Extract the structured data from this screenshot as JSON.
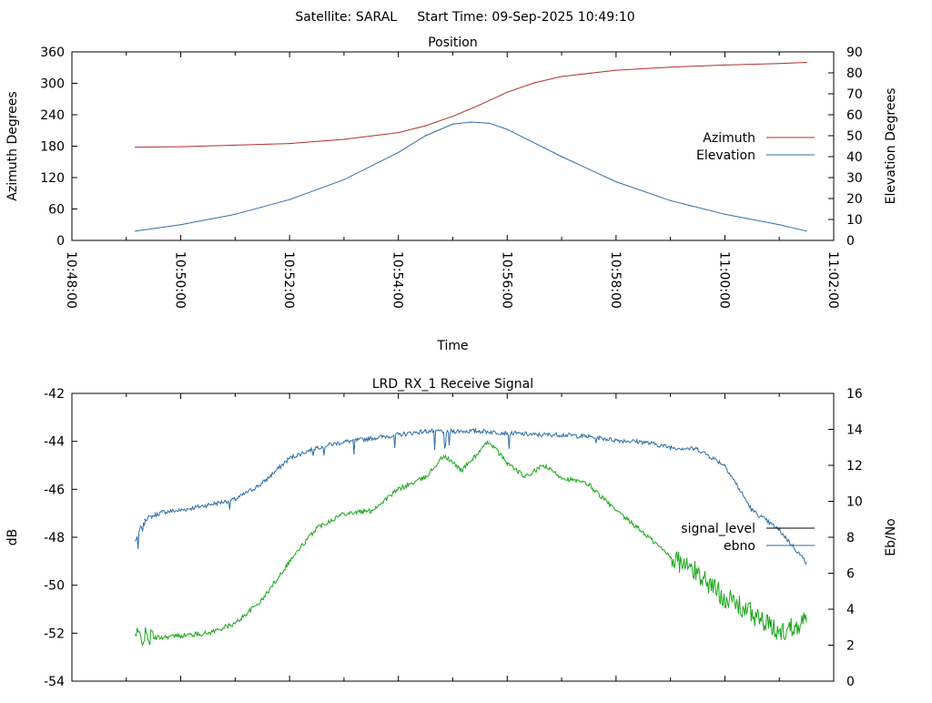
{
  "header": {
    "title": "Satellite: SARAL     Start Time: 09-Sep-2025 10:49:10"
  },
  "colors": {
    "azimuth": "#b03030",
    "elevation": "#2f6ea8",
    "signal_level": "#000000",
    "ebno": "#2f6ea8",
    "signal_trace": "#1aa81a",
    "ebno_trace": "#2f6ea8",
    "axis": "#000000",
    "background": "#ffffff"
  },
  "chart_data": [
    {
      "type": "line",
      "title": "Position",
      "xlabel": "Time",
      "ylabel": "Azimuth Degrees",
      "y2label": "Elevation Degrees",
      "xlim": [
        "10:48:00",
        "11:02:00"
      ],
      "x_ticks": [
        "10:48:00",
        "10:50:00",
        "10:52:00",
        "10:54:00",
        "10:56:00",
        "10:58:00",
        "11:00:00",
        "11:02:00"
      ],
      "ylim": [
        0,
        360
      ],
      "y_ticks": [
        "0",
        "60",
        "120",
        "180",
        "240",
        "300",
        "360"
      ],
      "y2lim": [
        0,
        90
      ],
      "y2_ticks": [
        "0",
        "10",
        "20",
        "30",
        "40",
        "50",
        "60",
        "70",
        "80",
        "90"
      ],
      "grid": false,
      "legend_position": "right",
      "series": [
        {
          "name": "Azimuth",
          "axis": "left",
          "points": [
            [
              "10:49:10",
              178
            ],
            [
              "10:50:00",
              179
            ],
            [
              "10:51:00",
              182
            ],
            [
              "10:52:00",
              185
            ],
            [
              "10:53:00",
              193
            ],
            [
              "10:54:00",
              206
            ],
            [
              "10:54:30",
              219
            ],
            [
              "10:55:00",
              237
            ],
            [
              "10:55:30",
              259
            ],
            [
              "10:56:00",
              283
            ],
            [
              "10:56:30",
              301
            ],
            [
              "10:57:00",
              313
            ],
            [
              "10:58:00",
              325
            ],
            [
              "10:59:00",
              331
            ],
            [
              "11:00:00",
              335
            ],
            [
              "11:01:00",
              338
            ],
            [
              "11:01:30",
              340
            ]
          ]
        },
        {
          "name": "Elevation",
          "axis": "right",
          "points": [
            [
              "10:49:10",
              4.5
            ],
            [
              "10:50:00",
              7.5
            ],
            [
              "10:51:00",
              12.5
            ],
            [
              "10:52:00",
              19.5
            ],
            [
              "10:53:00",
              29
            ],
            [
              "10:54:00",
              42
            ],
            [
              "10:54:30",
              50
            ],
            [
              "10:55:00",
              55.5
            ],
            [
              "10:55:20",
              56.5
            ],
            [
              "10:55:40",
              56
            ],
            [
              "10:56:00",
              53
            ],
            [
              "10:57:00",
              40
            ],
            [
              "10:58:00",
              28
            ],
            [
              "10:59:00",
              19
            ],
            [
              "11:00:00",
              12.5
            ],
            [
              "11:01:00",
              7.5
            ],
            [
              "11:01:30",
              4.5
            ]
          ]
        }
      ]
    },
    {
      "type": "line",
      "title": "LRD_RX_1 Receive Signal",
      "xlabel": "",
      "ylabel": "dB",
      "y2label": "Eb/No",
      "xlim": [
        "10:48:00",
        "11:02:00"
      ],
      "ylim": [
        -54,
        -42
      ],
      "y_ticks": [
        "-54",
        "-52",
        "-50",
        "-48",
        "-46",
        "-44",
        "-42"
      ],
      "y2lim": [
        0,
        16
      ],
      "y2_ticks": [
        "0",
        "2",
        "4",
        "6",
        "8",
        "10",
        "12",
        "14",
        "16"
      ],
      "grid": false,
      "legend_position": "right",
      "series": [
        {
          "name": "signal_level",
          "axis": "left",
          "color": "#1aa81a",
          "points": [
            [
              "10:49:10",
              -52.1
            ],
            [
              "10:49:30",
              -52.2
            ],
            [
              "10:50:00",
              -52.1
            ],
            [
              "10:50:30",
              -52.0
            ],
            [
              "10:51:00",
              -51.6
            ],
            [
              "10:51:30",
              -50.6
            ],
            [
              "10:52:00",
              -49.0
            ],
            [
              "10:52:30",
              -47.6
            ],
            [
              "10:53:00",
              -47.0
            ],
            [
              "10:53:30",
              -46.9
            ],
            [
              "10:54:00",
              -46.0
            ],
            [
              "10:54:30",
              -45.5
            ],
            [
              "10:54:50",
              -44.6
            ],
            [
              "10:55:10",
              -45.2
            ],
            [
              "10:55:40",
              -44.0
            ],
            [
              "10:56:00",
              -44.9
            ],
            [
              "10:56:20",
              -45.5
            ],
            [
              "10:56:40",
              -45.0
            ],
            [
              "10:57:00",
              -45.5
            ],
            [
              "10:57:30",
              -45.8
            ],
            [
              "10:58:00",
              -46.9
            ],
            [
              "10:58:30",
              -47.8
            ],
            [
              "10:59:00",
              -48.8
            ],
            [
              "10:59:30",
              -49.5
            ],
            [
              "11:00:00",
              -50.5
            ],
            [
              "11:00:30",
              -51.2
            ],
            [
              "11:01:00",
              -52.0
            ],
            [
              "11:01:30",
              -51.4
            ]
          ]
        },
        {
          "name": "ebno",
          "axis": "right",
          "color": "#2f6ea8",
          "points": [
            [
              "10:49:10",
              7.8
            ],
            [
              "10:49:20",
              9.0
            ],
            [
              "10:49:40",
              9.4
            ],
            [
              "10:50:00",
              9.5
            ],
            [
              "10:50:30",
              9.8
            ],
            [
              "10:51:00",
              10.1
            ],
            [
              "10:51:30",
              11.0
            ],
            [
              "10:52:00",
              12.4
            ],
            [
              "10:52:30",
              13.0
            ],
            [
              "10:53:00",
              13.3
            ],
            [
              "10:53:30",
              13.5
            ],
            [
              "10:54:00",
              13.7
            ],
            [
              "10:54:30",
              13.9
            ],
            [
              "10:55:00",
              13.9
            ],
            [
              "10:55:30",
              13.9
            ],
            [
              "10:56:00",
              13.8
            ],
            [
              "10:56:30",
              13.7
            ],
            [
              "10:57:00",
              13.7
            ],
            [
              "10:57:30",
              13.6
            ],
            [
              "10:58:00",
              13.4
            ],
            [
              "10:58:30",
              13.3
            ],
            [
              "10:59:00",
              13.0
            ],
            [
              "10:59:30",
              12.9
            ],
            [
              "11:00:00",
              12.0
            ],
            [
              "11:00:30",
              9.5
            ],
            [
              "11:01:00",
              8.4
            ],
            [
              "11:01:30",
              6.6
            ]
          ]
        }
      ]
    }
  ]
}
